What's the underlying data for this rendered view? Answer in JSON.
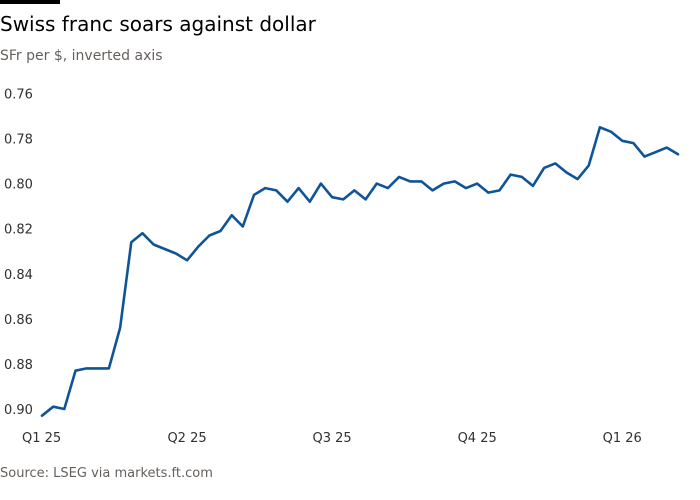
{
  "header": {
    "title": "Swiss franc soars against dollar",
    "subtitle": "SFr per $, inverted axis"
  },
  "footer": {
    "source": "Source: LSEG via markets.ft.com"
  },
  "colors": {
    "line": "#0F5499",
    "text": "#33302E",
    "muted": "#66605C",
    "grid": "#E6E3E0"
  },
  "chart_data": {
    "type": "line",
    "title": "Swiss franc soars against dollar",
    "subtitle": "SFr per $, inverted axis",
    "xlabel": "",
    "ylabel": "SFr per $",
    "y_inverted": true,
    "ylim": [
      0.762,
      0.904
    ],
    "yticks": [
      "0.76",
      "0.78",
      "0.80",
      "0.82",
      "0.84",
      "0.86",
      "0.88",
      "0.90"
    ],
    "yticks_values": [
      0.76,
      0.78,
      0.8,
      0.82,
      0.84,
      0.86,
      0.88,
      0.9
    ],
    "xticks": [
      {
        "label": "Q1 25",
        "x": 0
      },
      {
        "label": "Q2 25",
        "x": 13
      },
      {
        "label": "Q3 25",
        "x": 26
      },
      {
        "label": "Q4 25",
        "x": 39
      },
      {
        "label": "Q1 26",
        "x": 52
      }
    ],
    "xlim": [
      0,
      57
    ],
    "grid": false,
    "legend": "none",
    "series": [
      {
        "name": "",
        "x": [
          0,
          1,
          2,
          3,
          4,
          5,
          6,
          7,
          8,
          9,
          10,
          11,
          12,
          13,
          14,
          15,
          16,
          17,
          18,
          19,
          20,
          21,
          22,
          23,
          24,
          25,
          26,
          27,
          28,
          29,
          30,
          31,
          32,
          33,
          34,
          35,
          36,
          37,
          38,
          39,
          40,
          41,
          42,
          43,
          44,
          45,
          46,
          47,
          48,
          49,
          50,
          51,
          52,
          53,
          54,
          55,
          56,
          57
        ],
        "values": [
          0.903,
          0.899,
          0.9,
          0.883,
          0.882,
          0.882,
          0.882,
          0.864,
          0.826,
          0.822,
          0.827,
          0.829,
          0.831,
          0.834,
          0.828,
          0.823,
          0.821,
          0.814,
          0.819,
          0.805,
          0.802,
          0.803,
          0.808,
          0.802,
          0.808,
          0.8,
          0.806,
          0.807,
          0.803,
          0.807,
          0.8,
          0.802,
          0.797,
          0.799,
          0.799,
          0.803,
          0.8,
          0.799,
          0.802,
          0.8,
          0.804,
          0.803,
          0.796,
          0.797,
          0.801,
          0.793,
          0.791,
          0.795,
          0.798,
          0.792,
          0.775,
          0.777,
          0.781,
          0.782,
          0.788,
          0.786,
          0.784,
          0.787
        ]
      }
    ]
  }
}
